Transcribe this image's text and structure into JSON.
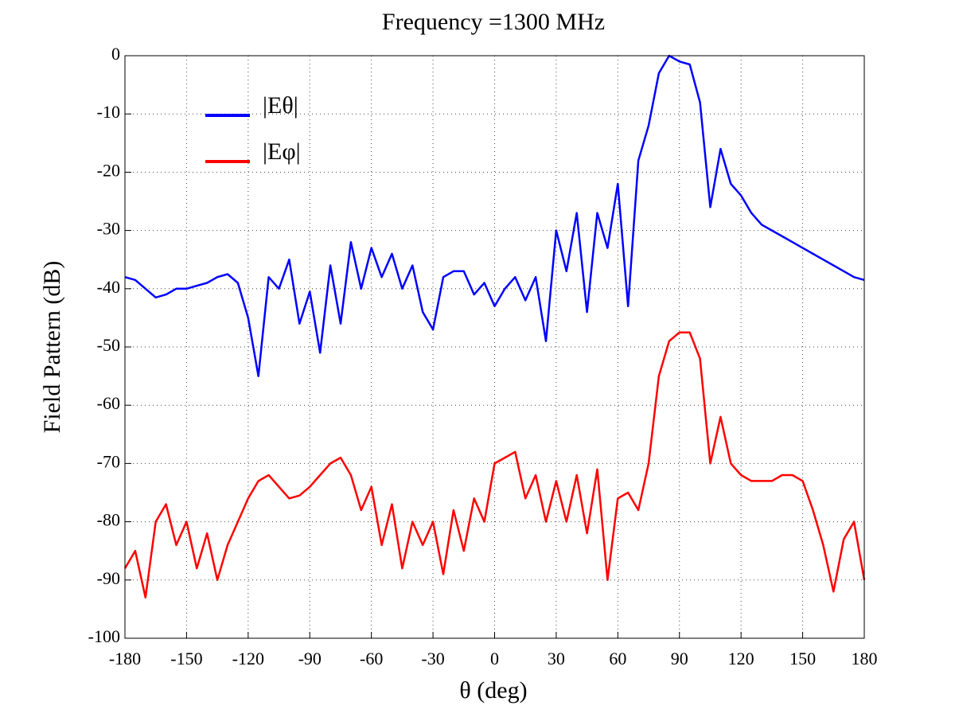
{
  "chart_data": {
    "type": "line",
    "title": "Frequency =1300 MHz",
    "x_label": "θ (deg)",
    "y_label": "Field Pattern (dB)",
    "x": [
      -180,
      -175,
      -170,
      -165,
      -160,
      -155,
      -150,
      -145,
      -140,
      -135,
      -130,
      -125,
      -120,
      -115,
      -110,
      -105,
      -100,
      -95,
      -90,
      -85,
      -80,
      -75,
      -70,
      -65,
      -60,
      -55,
      -50,
      -45,
      -40,
      -35,
      -30,
      -25,
      -20,
      -15,
      -10,
      -5,
      0,
      5,
      10,
      15,
      20,
      25,
      30,
      35,
      40,
      45,
      50,
      55,
      60,
      65,
      70,
      75,
      80,
      85,
      90,
      95,
      100,
      105,
      110,
      115,
      120,
      125,
      130,
      135,
      140,
      145,
      150,
      155,
      160,
      165,
      170,
      175,
      180
    ],
    "series": [
      {
        "name": "|Eθ|",
        "color": "#0000ff",
        "values": [
          -38,
          -38.5,
          -40,
          -41.5,
          -41,
          -40,
          -40,
          -39.5,
          -39,
          -38,
          -37.5,
          -39,
          -45,
          -55,
          -38,
          -40,
          -35,
          -46,
          -40.5,
          -51,
          -36,
          -46,
          -32,
          -40,
          -33,
          -38,
          -34,
          -40,
          -36,
          -44,
          -47,
          -38,
          -37,
          -37,
          -41,
          -39,
          -43,
          -40,
          -38,
          -42,
          -38,
          -49,
          -30,
          -37,
          -27,
          -44,
          -27,
          -33,
          -22,
          -43,
          -18,
          -12,
          -3,
          0,
          -1,
          -1.5,
          -8,
          -26,
          -16,
          -22,
          -24,
          -27,
          -29,
          -30,
          -31,
          -32,
          -33,
          -34,
          -35,
          -36,
          -37,
          -38,
          -38.5
        ]
      },
      {
        "name": "|Eφ|",
        "color": "#ff0000",
        "values": [
          -88,
          -85,
          -93,
          -80,
          -77,
          -84,
          -80,
          -88,
          -82,
          -90,
          -84,
          -80,
          -76,
          -73,
          -72,
          -74,
          -76,
          -75.5,
          -74,
          -72,
          -70,
          -69,
          -72,
          -78,
          -74,
          -84,
          -77,
          -88,
          -80,
          -84,
          -80,
          -89,
          -78,
          -85,
          -76,
          -80,
          -70,
          -69,
          -68,
          -76,
          -72,
          -80,
          -73,
          -80,
          -72,
          -82,
          -71,
          -90,
          -76,
          -75,
          -78,
          -70,
          -55,
          -49,
          -47.5,
          -47.5,
          -52,
          -70,
          -62,
          -70,
          -72,
          -73,
          -73,
          -73,
          -72,
          -72,
          -73,
          -78,
          -84,
          -92,
          -83,
          -80,
          -90
        ]
      }
    ],
    "xlim": [
      -180,
      180
    ],
    "ylim": [
      -100,
      0
    ],
    "xticks": [
      -180,
      -150,
      -120,
      -90,
      -60,
      -30,
      0,
      30,
      60,
      90,
      120,
      150,
      180
    ],
    "yticks": [
      0,
      -10,
      -20,
      -30,
      -40,
      -50,
      -60,
      -70,
      -80,
      -90,
      -100
    ],
    "grid": true,
    "legend": "upper left"
  }
}
